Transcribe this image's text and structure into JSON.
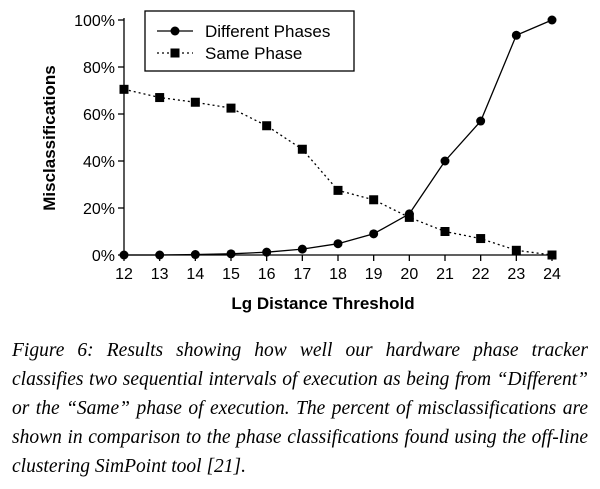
{
  "chart_data": {
    "type": "line",
    "x": [
      12,
      13,
      14,
      15,
      16,
      17,
      18,
      19,
      20,
      21,
      22,
      23,
      24
    ],
    "series": [
      {
        "name": "Different Phases",
        "marker": "circle",
        "line": "solid",
        "values": [
          0,
          0,
          0.2,
          0.5,
          1.2,
          2.5,
          4.8,
          9,
          17.5,
          40,
          57,
          93.5,
          100
        ]
      },
      {
        "name": "Same Phase",
        "marker": "square",
        "line": "dotted",
        "values": [
          70.5,
          67,
          65,
          62.5,
          55,
          45,
          27.5,
          23.5,
          16,
          10,
          7,
          2,
          0
        ]
      }
    ],
    "xlabel": "Lg Distance Threshold",
    "ylabel": "Misclassifications",
    "xlim": [
      12,
      24
    ],
    "ylim": [
      0,
      100
    ],
    "yticks": [
      "0%",
      "20%",
      "40%",
      "60%",
      "80%",
      "100%"
    ],
    "yticks_values": [
      0,
      20,
      40,
      60,
      80,
      100
    ],
    "grid": false,
    "legend": "top-left"
  },
  "caption": "Figure 6: Results showing how well our hardware phase tracker classifies two sequential intervals of execution as being from “Different” or the “Same” phase of execution. The percent of misclassifications are shown in comparison to the phase classifications found using the off-line clustering SimPoint tool [21]."
}
